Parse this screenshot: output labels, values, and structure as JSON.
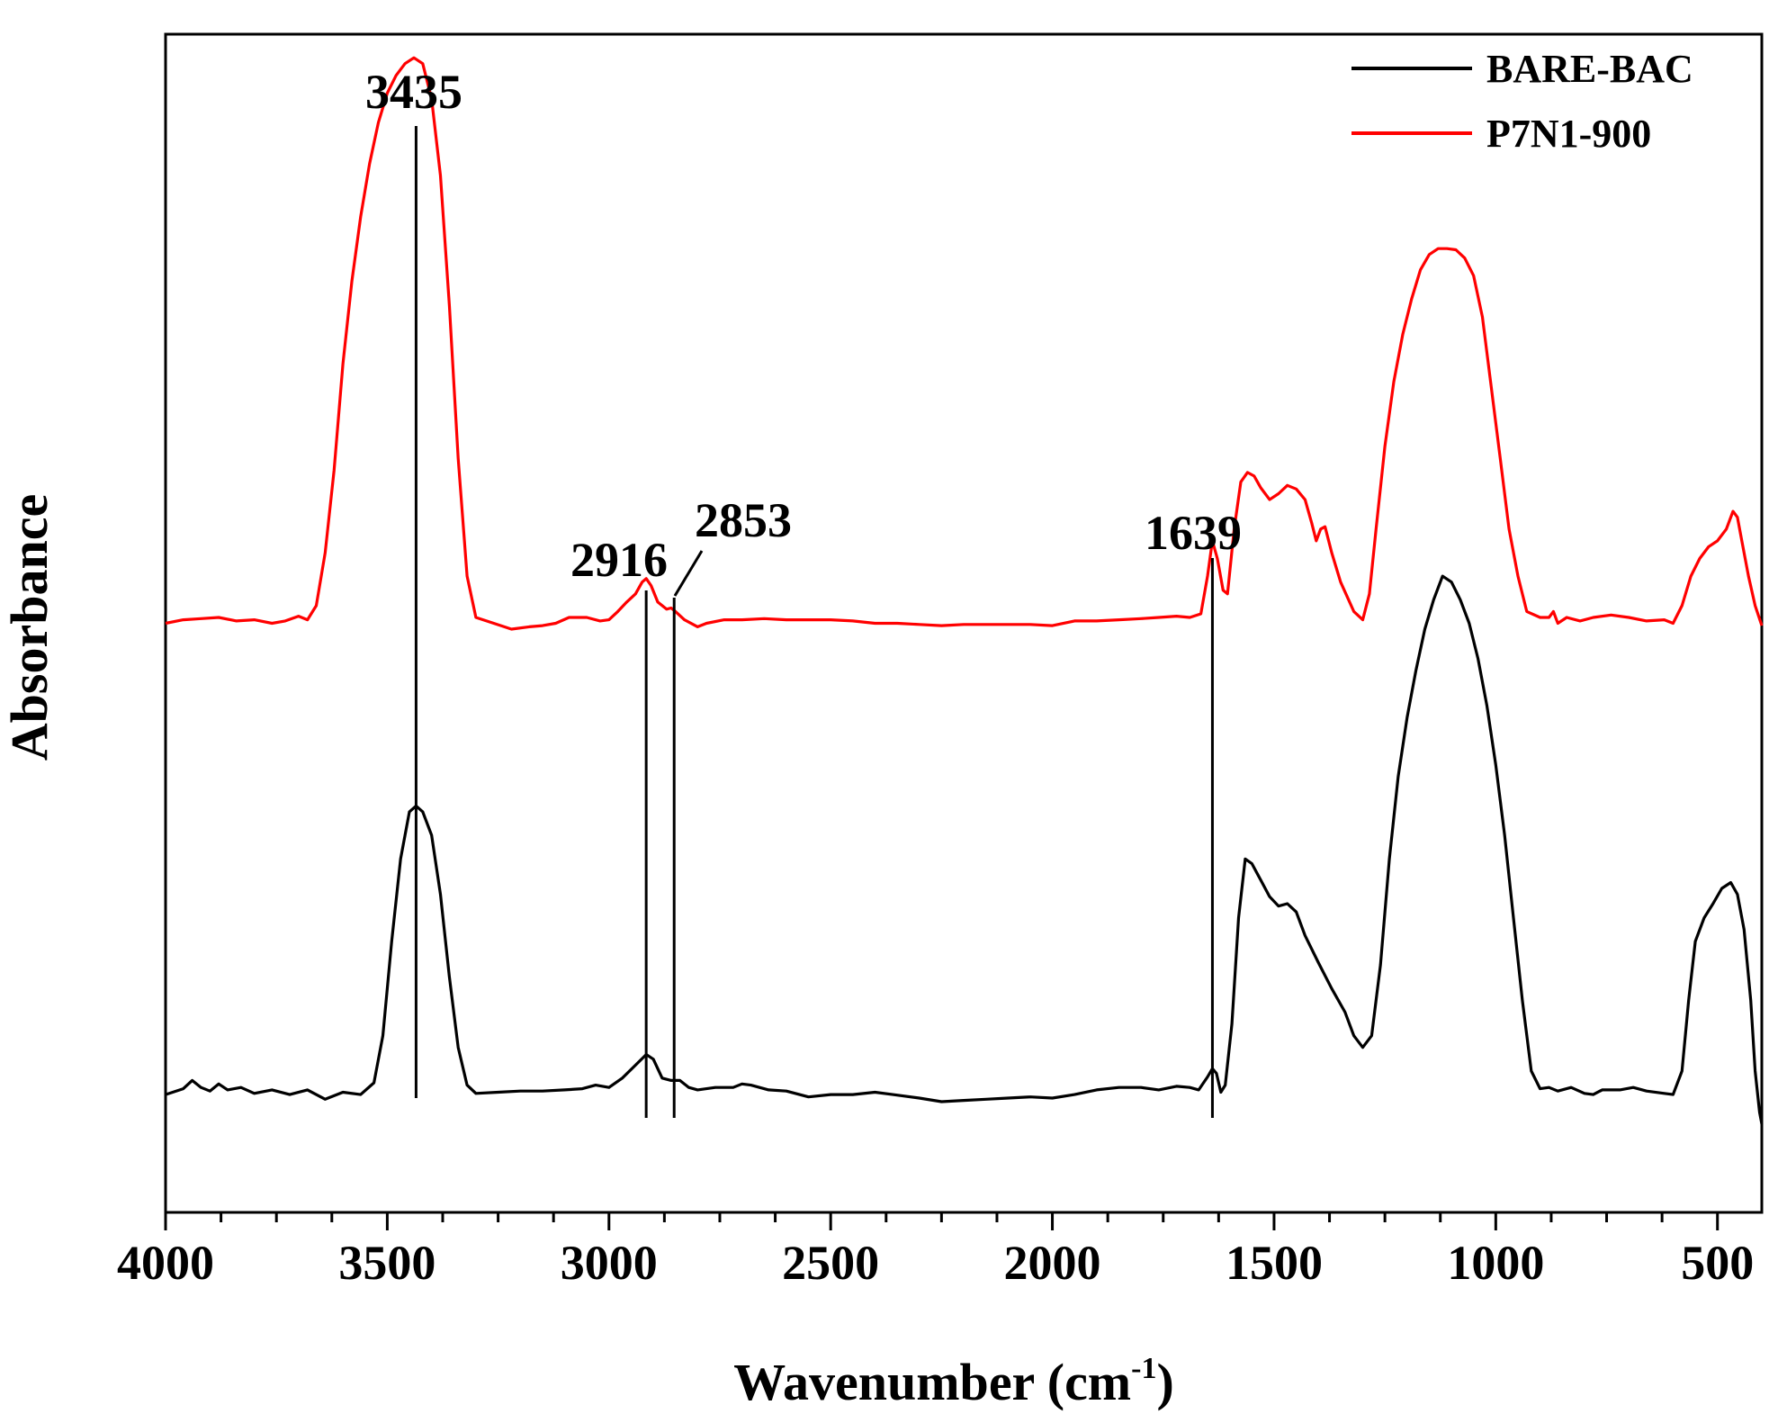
{
  "chart_data": {
    "type": "line",
    "xlabel": "Wavenumber (cm",
    "xlabel_sup": "-1",
    "xlabel_close": ")",
    "ylabel": "Absorbance",
    "xlim": [
      4000,
      400
    ],
    "x_reversed": true,
    "ylim": [
      0,
      1
    ],
    "x_ticks": [
      4000,
      3500,
      3000,
      2500,
      2000,
      1500,
      1000,
      500
    ],
    "x_tick_labels": [
      "4000",
      "3500",
      "3000",
      "2500",
      "2000",
      "1500",
      "1000",
      "500"
    ],
    "y_ticks_shown": false,
    "grid": false,
    "legend": {
      "placement": "top-right"
    },
    "series": [
      {
        "name": "BARE-BAC",
        "color": "#000000",
        "points": [
          [
            4000,
            0.1
          ],
          [
            3960,
            0.105
          ],
          [
            3940,
            0.112
          ],
          [
            3920,
            0.106
          ],
          [
            3900,
            0.103
          ],
          [
            3880,
            0.109
          ],
          [
            3860,
            0.104
          ],
          [
            3830,
            0.106
          ],
          [
            3800,
            0.101
          ],
          [
            3760,
            0.104
          ],
          [
            3720,
            0.1
          ],
          [
            3680,
            0.104
          ],
          [
            3640,
            0.096
          ],
          [
            3600,
            0.102
          ],
          [
            3560,
            0.1
          ],
          [
            3530,
            0.11
          ],
          [
            3510,
            0.15
          ],
          [
            3490,
            0.23
          ],
          [
            3470,
            0.3
          ],
          [
            3450,
            0.34
          ],
          [
            3435,
            0.345
          ],
          [
            3420,
            0.34
          ],
          [
            3400,
            0.32
          ],
          [
            3380,
            0.27
          ],
          [
            3360,
            0.2
          ],
          [
            3340,
            0.14
          ],
          [
            3320,
            0.108
          ],
          [
            3300,
            0.101
          ],
          [
            3250,
            0.102
          ],
          [
            3200,
            0.103
          ],
          [
            3150,
            0.103
          ],
          [
            3100,
            0.104
          ],
          [
            3060,
            0.105
          ],
          [
            3030,
            0.108
          ],
          [
            3000,
            0.106
          ],
          [
            2970,
            0.114
          ],
          [
            2940,
            0.125
          ],
          [
            2916,
            0.134
          ],
          [
            2900,
            0.13
          ],
          [
            2880,
            0.114
          ],
          [
            2860,
            0.112
          ],
          [
            2840,
            0.112
          ],
          [
            2820,
            0.106
          ],
          [
            2800,
            0.104
          ],
          [
            2760,
            0.106
          ],
          [
            2720,
            0.106
          ],
          [
            2700,
            0.109
          ],
          [
            2680,
            0.108
          ],
          [
            2640,
            0.104
          ],
          [
            2600,
            0.103
          ],
          [
            2550,
            0.098
          ],
          [
            2500,
            0.1
          ],
          [
            2450,
            0.1
          ],
          [
            2400,
            0.102
          ],
          [
            2360,
            0.1
          ],
          [
            2300,
            0.097
          ],
          [
            2250,
            0.094
          ],
          [
            2200,
            0.095
          ],
          [
            2150,
            0.096
          ],
          [
            2100,
            0.097
          ],
          [
            2050,
            0.098
          ],
          [
            2000,
            0.097
          ],
          [
            1950,
            0.1
          ],
          [
            1900,
            0.104
          ],
          [
            1850,
            0.106
          ],
          [
            1800,
            0.106
          ],
          [
            1760,
            0.104
          ],
          [
            1720,
            0.107
          ],
          [
            1690,
            0.106
          ],
          [
            1670,
            0.104
          ],
          [
            1650,
            0.115
          ],
          [
            1639,
            0.122
          ],
          [
            1630,
            0.118
          ],
          [
            1620,
            0.102
          ],
          [
            1610,
            0.108
          ],
          [
            1595,
            0.16
          ],
          [
            1580,
            0.25
          ],
          [
            1565,
            0.3
          ],
          [
            1550,
            0.296
          ],
          [
            1530,
            0.282
          ],
          [
            1510,
            0.268
          ],
          [
            1490,
            0.26
          ],
          [
            1470,
            0.262
          ],
          [
            1450,
            0.255
          ],
          [
            1430,
            0.235
          ],
          [
            1400,
            0.212
          ],
          [
            1370,
            0.19
          ],
          [
            1340,
            0.17
          ],
          [
            1320,
            0.15
          ],
          [
            1300,
            0.14
          ],
          [
            1280,
            0.15
          ],
          [
            1260,
            0.21
          ],
          [
            1240,
            0.3
          ],
          [
            1220,
            0.37
          ],
          [
            1200,
            0.42
          ],
          [
            1180,
            0.46
          ],
          [
            1160,
            0.495
          ],
          [
            1140,
            0.52
          ],
          [
            1120,
            0.54
          ],
          [
            1100,
            0.535
          ],
          [
            1080,
            0.52
          ],
          [
            1060,
            0.5
          ],
          [
            1040,
            0.47
          ],
          [
            1020,
            0.43
          ],
          [
            1000,
            0.38
          ],
          [
            980,
            0.32
          ],
          [
            960,
            0.25
          ],
          [
            940,
            0.18
          ],
          [
            920,
            0.12
          ],
          [
            900,
            0.105
          ],
          [
            880,
            0.106
          ],
          [
            860,
            0.103
          ],
          [
            830,
            0.106
          ],
          [
            800,
            0.101
          ],
          [
            780,
            0.1
          ],
          [
            760,
            0.104
          ],
          [
            720,
            0.104
          ],
          [
            690,
            0.106
          ],
          [
            660,
            0.103
          ],
          [
            620,
            0.101
          ],
          [
            600,
            0.1
          ],
          [
            580,
            0.12
          ],
          [
            565,
            0.18
          ],
          [
            550,
            0.23
          ],
          [
            530,
            0.25
          ],
          [
            510,
            0.262
          ],
          [
            490,
            0.275
          ],
          [
            470,
            0.28
          ],
          [
            455,
            0.27
          ],
          [
            440,
            0.24
          ],
          [
            425,
            0.18
          ],
          [
            415,
            0.12
          ],
          [
            405,
            0.085
          ],
          [
            400,
            0.075
          ]
        ]
      },
      {
        "name": "P7N1-900",
        "color": "#ff0000",
        "points": [
          [
            4000,
            0.5
          ],
          [
            3960,
            0.503
          ],
          [
            3920,
            0.504
          ],
          [
            3880,
            0.505
          ],
          [
            3840,
            0.502
          ],
          [
            3800,
            0.503
          ],
          [
            3760,
            0.5
          ],
          [
            3730,
            0.502
          ],
          [
            3700,
            0.506
          ],
          [
            3680,
            0.503
          ],
          [
            3660,
            0.515
          ],
          [
            3640,
            0.56
          ],
          [
            3620,
            0.63
          ],
          [
            3600,
            0.72
          ],
          [
            3580,
            0.79
          ],
          [
            3560,
            0.845
          ],
          [
            3540,
            0.89
          ],
          [
            3520,
            0.925
          ],
          [
            3500,
            0.95
          ],
          [
            3480,
            0.965
          ],
          [
            3460,
            0.975
          ],
          [
            3440,
            0.98
          ],
          [
            3420,
            0.975
          ],
          [
            3400,
            0.945
          ],
          [
            3380,
            0.88
          ],
          [
            3360,
            0.77
          ],
          [
            3340,
            0.64
          ],
          [
            3320,
            0.54
          ],
          [
            3300,
            0.505
          ],
          [
            3260,
            0.5
          ],
          [
            3220,
            0.495
          ],
          [
            3180,
            0.497
          ],
          [
            3150,
            0.498
          ],
          [
            3120,
            0.5
          ],
          [
            3090,
            0.505
          ],
          [
            3050,
            0.505
          ],
          [
            3020,
            0.502
          ],
          [
            3000,
            0.503
          ],
          [
            2980,
            0.51
          ],
          [
            2960,
            0.518
          ],
          [
            2940,
            0.525
          ],
          [
            2925,
            0.535
          ],
          [
            2916,
            0.538
          ],
          [
            2905,
            0.532
          ],
          [
            2890,
            0.518
          ],
          [
            2870,
            0.512
          ],
          [
            2860,
            0.513
          ],
          [
            2850,
            0.51
          ],
          [
            2830,
            0.503
          ],
          [
            2800,
            0.497
          ],
          [
            2780,
            0.5
          ],
          [
            2740,
            0.503
          ],
          [
            2700,
            0.503
          ],
          [
            2650,
            0.504
          ],
          [
            2600,
            0.503
          ],
          [
            2550,
            0.503
          ],
          [
            2500,
            0.503
          ],
          [
            2450,
            0.502
          ],
          [
            2400,
            0.5
          ],
          [
            2350,
            0.5
          ],
          [
            2300,
            0.499
          ],
          [
            2250,
            0.498
          ],
          [
            2200,
            0.499
          ],
          [
            2150,
            0.499
          ],
          [
            2100,
            0.499
          ],
          [
            2050,
            0.499
          ],
          [
            2000,
            0.498
          ],
          [
            1950,
            0.502
          ],
          [
            1900,
            0.502
          ],
          [
            1850,
            0.503
          ],
          [
            1800,
            0.504
          ],
          [
            1760,
            0.505
          ],
          [
            1720,
            0.506
          ],
          [
            1690,
            0.505
          ],
          [
            1665,
            0.508
          ],
          [
            1650,
            0.54
          ],
          [
            1639,
            0.57
          ],
          [
            1628,
            0.555
          ],
          [
            1615,
            0.528
          ],
          [
            1605,
            0.525
          ],
          [
            1590,
            0.58
          ],
          [
            1575,
            0.62
          ],
          [
            1560,
            0.628
          ],
          [
            1545,
            0.625
          ],
          [
            1530,
            0.615
          ],
          [
            1510,
            0.605
          ],
          [
            1490,
            0.61
          ],
          [
            1470,
            0.617
          ],
          [
            1450,
            0.614
          ],
          [
            1430,
            0.605
          ],
          [
            1415,
            0.585
          ],
          [
            1405,
            0.57
          ],
          [
            1395,
            0.58
          ],
          [
            1385,
            0.582
          ],
          [
            1370,
            0.56
          ],
          [
            1350,
            0.535
          ],
          [
            1320,
            0.51
          ],
          [
            1300,
            0.503
          ],
          [
            1285,
            0.525
          ],
          [
            1270,
            0.58
          ],
          [
            1250,
            0.65
          ],
          [
            1230,
            0.705
          ],
          [
            1210,
            0.745
          ],
          [
            1190,
            0.775
          ],
          [
            1170,
            0.8
          ],
          [
            1150,
            0.813
          ],
          [
            1130,
            0.818
          ],
          [
            1110,
            0.818
          ],
          [
            1090,
            0.817
          ],
          [
            1070,
            0.81
          ],
          [
            1050,
            0.795
          ],
          [
            1030,
            0.76
          ],
          [
            1010,
            0.7
          ],
          [
            990,
            0.64
          ],
          [
            970,
            0.58
          ],
          [
            950,
            0.54
          ],
          [
            930,
            0.51
          ],
          [
            900,
            0.505
          ],
          [
            880,
            0.505
          ],
          [
            870,
            0.51
          ],
          [
            860,
            0.5
          ],
          [
            840,
            0.505
          ],
          [
            810,
            0.502
          ],
          [
            780,
            0.505
          ],
          [
            740,
            0.507
          ],
          [
            700,
            0.505
          ],
          [
            660,
            0.502
          ],
          [
            620,
            0.503
          ],
          [
            600,
            0.5
          ],
          [
            580,
            0.515
          ],
          [
            560,
            0.54
          ],
          [
            540,
            0.555
          ],
          [
            520,
            0.565
          ],
          [
            500,
            0.57
          ],
          [
            480,
            0.58
          ],
          [
            465,
            0.595
          ],
          [
            455,
            0.59
          ],
          [
            445,
            0.57
          ],
          [
            430,
            0.54
          ],
          [
            415,
            0.515
          ],
          [
            400,
            0.498
          ]
        ]
      }
    ],
    "annotations": [
      {
        "label": "3435",
        "x": 3435
      },
      {
        "label": "2916",
        "x": 2916
      },
      {
        "label": "2853",
        "x": 2853
      },
      {
        "label": "1639",
        "x": 1639
      }
    ]
  }
}
